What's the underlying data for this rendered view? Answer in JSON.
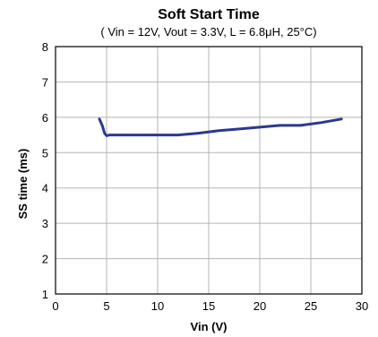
{
  "chart_data": {
    "type": "line",
    "title": "Soft Start Time",
    "subtitle": "( Vin = 12V, Vout = 3.3V, L = 6.8μH, 25°C)",
    "xlabel": "Vin (V)",
    "ylabel": "SS time (ms)",
    "xlim": [
      0,
      30
    ],
    "ylim": [
      1,
      8
    ],
    "xticks": [
      0,
      5,
      10,
      15,
      20,
      25,
      30
    ],
    "yticks": [
      1,
      2,
      3,
      4,
      5,
      6,
      7,
      8
    ],
    "grid": true,
    "legend": "none",
    "series": [
      {
        "color": "#2b3990",
        "x": [
          4.3,
          4.6,
          4.8,
          5.0,
          5.3,
          6,
          8,
          10,
          12,
          14,
          16,
          18,
          20,
          22,
          24,
          26,
          28
        ],
        "y": [
          5.95,
          5.75,
          5.55,
          5.48,
          5.5,
          5.5,
          5.5,
          5.5,
          5.5,
          5.55,
          5.62,
          5.67,
          5.72,
          5.77,
          5.77,
          5.85,
          5.95
        ]
      }
    ]
  }
}
